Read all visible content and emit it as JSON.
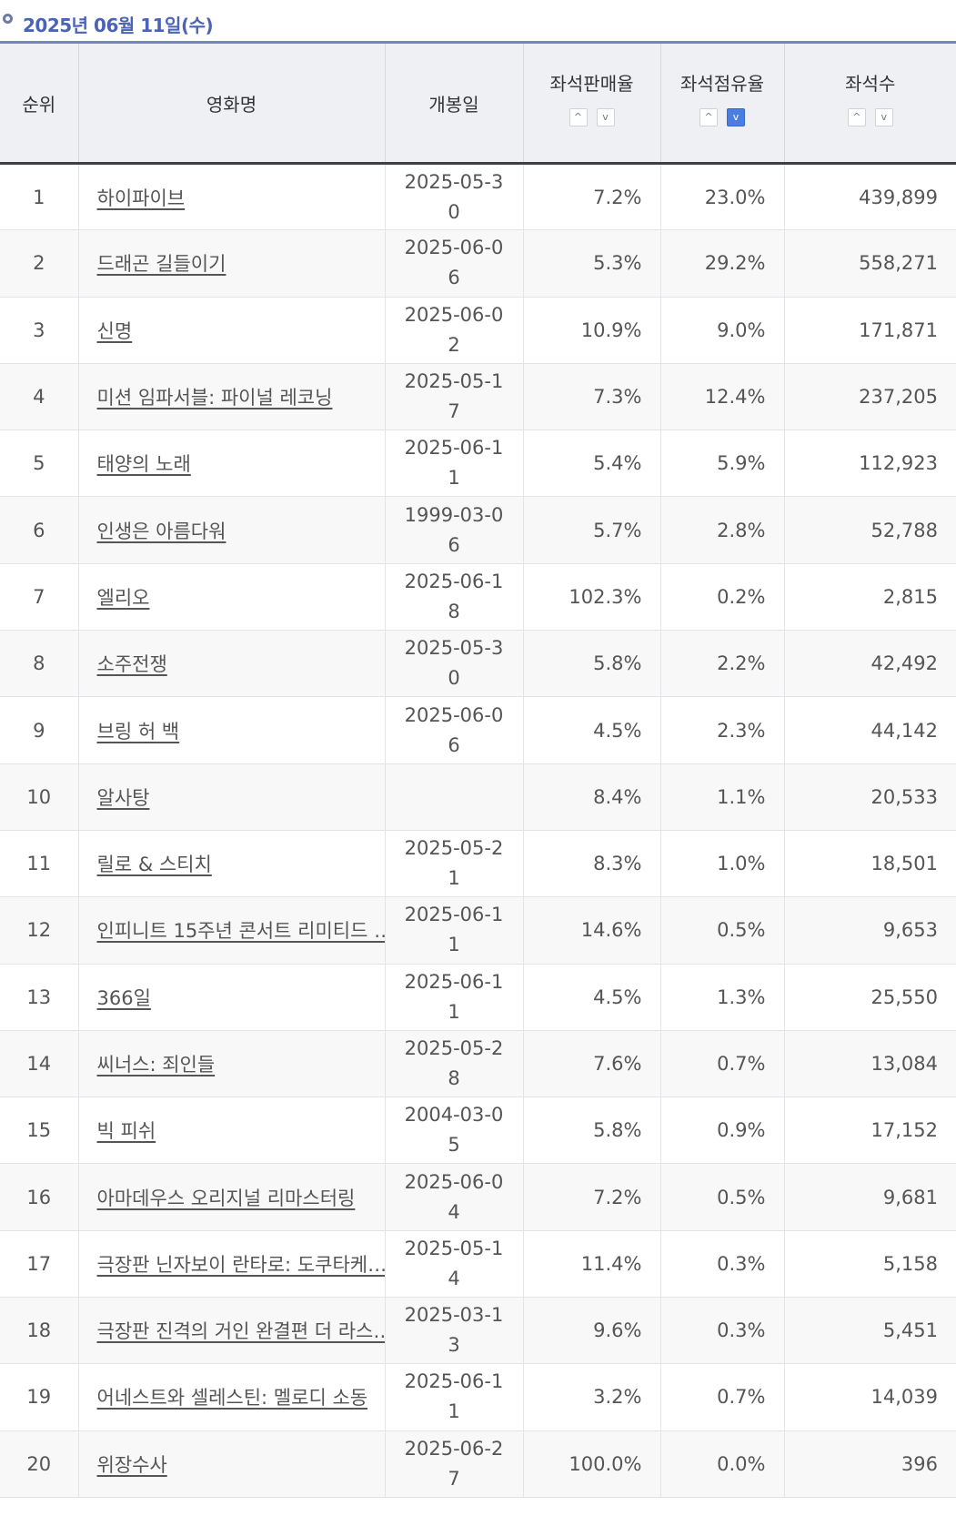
{
  "header": {
    "date": "2025년 06월 11일(수)"
  },
  "columns": {
    "rank": "순위",
    "title": "영화명",
    "release": "개봉일",
    "sales_rate": "좌석판매율",
    "share_rate": "좌석점유율",
    "seats": "좌석수"
  },
  "sort_icons": {
    "up": "^",
    "down": "v"
  },
  "rows": [
    {
      "rank": "1",
      "title": "하이파이브",
      "release": "2025-05-30",
      "sales": "7.2%",
      "share": "23.0%",
      "seats": "439,899"
    },
    {
      "rank": "2",
      "title": "드래곤 길들이기",
      "release": "2025-06-06",
      "sales": "5.3%",
      "share": "29.2%",
      "seats": "558,271"
    },
    {
      "rank": "3",
      "title": "신명",
      "release": "2025-06-02",
      "sales": "10.9%",
      "share": "9.0%",
      "seats": "171,871"
    },
    {
      "rank": "4",
      "title": "미션 임파서블: 파이널 레코닝",
      "release": "2025-05-17",
      "sales": "7.3%",
      "share": "12.4%",
      "seats": "237,205"
    },
    {
      "rank": "5",
      "title": "태양의 노래",
      "release": "2025-06-11",
      "sales": "5.4%",
      "share": "5.9%",
      "seats": "112,923"
    },
    {
      "rank": "6",
      "title": "인생은 아름다워",
      "release": "1999-03-06",
      "sales": "5.7%",
      "share": "2.8%",
      "seats": "52,788"
    },
    {
      "rank": "7",
      "title": "엘리오",
      "release": "2025-06-18",
      "sales": "102.3%",
      "share": "0.2%",
      "seats": "2,815"
    },
    {
      "rank": "8",
      "title": "소주전쟁",
      "release": "2025-05-30",
      "sales": "5.8%",
      "share": "2.2%",
      "seats": "42,492"
    },
    {
      "rank": "9",
      "title": "브링 허 백",
      "release": "2025-06-06",
      "sales": "4.5%",
      "share": "2.3%",
      "seats": "44,142"
    },
    {
      "rank": "10",
      "title": "알사탕",
      "release": "",
      "sales": "8.4%",
      "share": "1.1%",
      "seats": "20,533"
    },
    {
      "rank": "11",
      "title": "릴로 & 스티치",
      "release": "2025-05-21",
      "sales": "8.3%",
      "share": "1.0%",
      "seats": "18,501"
    },
    {
      "rank": "12",
      "title": "인피니트 15주년 콘서트 리미티드 …",
      "release": "2025-06-11",
      "sales": "14.6%",
      "share": "0.5%",
      "seats": "9,653"
    },
    {
      "rank": "13",
      "title": "366일",
      "release": "2025-06-11",
      "sales": "4.5%",
      "share": "1.3%",
      "seats": "25,550"
    },
    {
      "rank": "14",
      "title": "씨너스: 죄인들",
      "release": "2025-05-28",
      "sales": "7.6%",
      "share": "0.7%",
      "seats": "13,084"
    },
    {
      "rank": "15",
      "title": "빅 피쉬",
      "release": "2004-03-05",
      "sales": "5.8%",
      "share": "0.9%",
      "seats": "17,152"
    },
    {
      "rank": "16",
      "title": "아마데우스 오리지널 리마스터링",
      "release": "2025-06-04",
      "sales": "7.2%",
      "share": "0.5%",
      "seats": "9,681"
    },
    {
      "rank": "17",
      "title": "극장판 닌자보이 란타로: 도쿠타케…",
      "release": "2025-05-14",
      "sales": "11.4%",
      "share": "0.3%",
      "seats": "5,158"
    },
    {
      "rank": "18",
      "title": "극장판 진격의 거인 완결편 더 라스…",
      "release": "2025-03-13",
      "sales": "9.6%",
      "share": "0.3%",
      "seats": "5,451"
    },
    {
      "rank": "19",
      "title": "어네스트와 셀레스틴: 멜로디 소동",
      "release": "2025-06-11",
      "sales": "3.2%",
      "share": "0.7%",
      "seats": "14,039"
    },
    {
      "rank": "20",
      "title": "위장수사",
      "release": "2025-06-27",
      "sales": "100.0%",
      "share": "0.0%",
      "seats": "396"
    }
  ]
}
